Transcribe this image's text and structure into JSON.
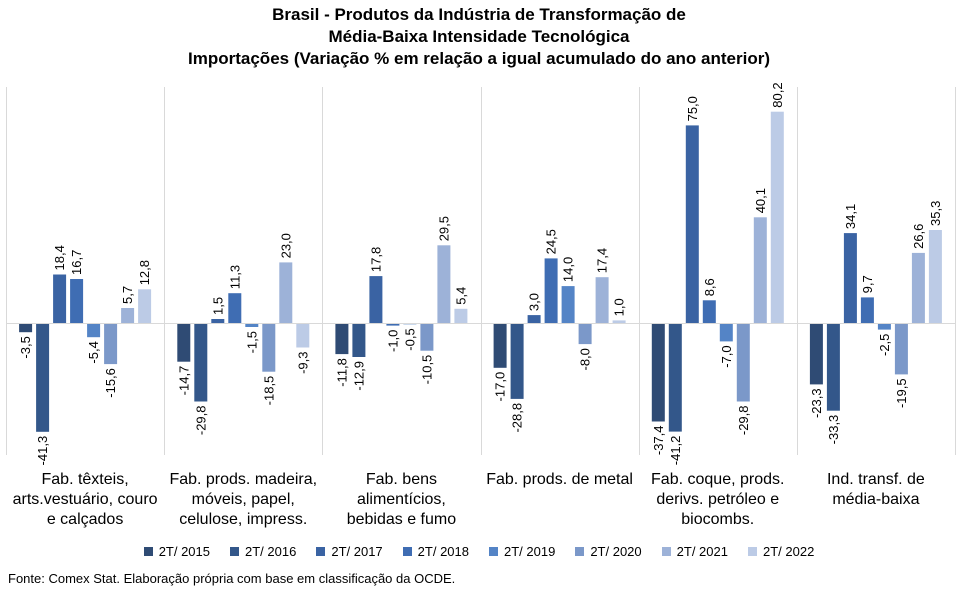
{
  "chart_data": {
    "type": "bar",
    "title": [
      "Brasil - Produtos da Indústria de Transformação de",
      "Média-Baixa Intensidade Tecnológica",
      "Importações (Variação % em relação a igual acumulado do ano anterior)"
    ],
    "categories": [
      [
        "Fab. têxteis,",
        "arts.vestuário, couro",
        "e calçados"
      ],
      [
        "Fab. prods. madeira,",
        "móveis, papel,",
        "celulose, impress."
      ],
      [
        "Fab. bens",
        "alimentícios,",
        "bebidas e fumo"
      ],
      [
        "Fab. prods. de metal"
      ],
      [
        "Fab. coque, prods.",
        "derivs. petróleo e",
        "biocombs."
      ],
      [
        "Ind. transf. de",
        "média-baixa"
      ]
    ],
    "series": [
      {
        "name": "2T/ 2015",
        "color": "#2f4b74",
        "values": [
          -3.5,
          -14.7,
          -11.8,
          -17.0,
          -37.4,
          -23.3
        ]
      },
      {
        "name": "2T/ 2016",
        "color": "#33578a",
        "values": [
          -41.3,
          -29.8,
          -12.9,
          -28.8,
          -41.2,
          -33.3
        ]
      },
      {
        "name": "2T/ 2017",
        "color": "#3a63a3",
        "values": [
          18.4,
          1.5,
          17.8,
          3.0,
          75.0,
          34.1
        ]
      },
      {
        "name": "2T/ 2018",
        "color": "#3f6db3",
        "values": [
          16.7,
          11.3,
          -1.0,
          24.5,
          8.6,
          9.7
        ]
      },
      {
        "name": "2T/ 2019",
        "color": "#5484c6",
        "values": [
          -5.4,
          -1.5,
          -0.5,
          14.0,
          -7.0,
          -2.5
        ]
      },
      {
        "name": "2T/ 2020",
        "color": "#7b98c9",
        "values": [
          -15.6,
          -18.5,
          -10.5,
          -8.0,
          -29.8,
          -19.5
        ]
      },
      {
        "name": "2T/ 2021",
        "color": "#9db2d8",
        "values": [
          5.7,
          23.0,
          29.5,
          17.4,
          40.1,
          26.6
        ]
      },
      {
        "name": "2T/ 2022",
        "color": "#bccbe6",
        "values": [
          12.8,
          -9.3,
          5.4,
          1.0,
          80.2,
          35.3
        ]
      }
    ],
    "value_labels": [
      [
        "-3,5",
        "-14,7",
        "-11,8",
        "-17,0",
        "-37,4",
        "-23,3"
      ],
      [
        "-41,3",
        "-29,8",
        "-12,9",
        "-28,8",
        "-41,2",
        "-33,3"
      ],
      [
        "18,4",
        "1,5",
        "17,8",
        "3,0",
        "75,0",
        "34,1"
      ],
      [
        "16,7",
        "11,3",
        "-1,0",
        "24,5",
        "8,6",
        "9,7"
      ],
      [
        "-5,4",
        "-1,5",
        "-0,5",
        "14,0",
        "-7,0",
        "-2,5"
      ],
      [
        "-15,6",
        "-18,5",
        "-10,5",
        "-8,0",
        "-29,8",
        "-19,5"
      ],
      [
        "5,7",
        "23,0",
        "29,5",
        "17,4",
        "40,1",
        "26,6"
      ],
      [
        "12,8",
        "-9,3",
        "5,4",
        "1,0",
        "80,2",
        "35,3"
      ]
    ],
    "legend_position": "bottom",
    "grid": false
  },
  "source": "Fonte: Comex Stat. Elaboração própria com base em classificação da OCDE."
}
